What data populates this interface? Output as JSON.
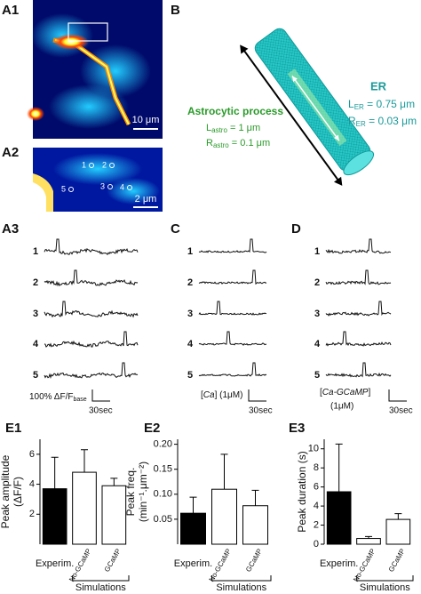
{
  "panels": {
    "a1": {
      "label": "A1",
      "scale": "10 μm"
    },
    "a2": {
      "label": "A2",
      "scale": "2 μm",
      "rois": [
        "1",
        "2",
        "3",
        "4",
        "5"
      ]
    },
    "b": {
      "label": "B",
      "er_title": "ER",
      "er_length": {
        "symbol": "L",
        "sub": "ER",
        "text": " = 0.75 μm"
      },
      "er_radius": {
        "symbol": "R",
        "sub": "ER",
        "text": " = 0.03 μm"
      },
      "process_title": "Astrocytic process",
      "process_length": {
        "symbol": "L",
        "sub": "astro",
        "text": " = 1 μm"
      },
      "process_radius": {
        "symbol": "R",
        "sub": "astro",
        "text": " = 0.1 μm"
      }
    },
    "a3": {
      "label": "A3",
      "traces": [
        "1",
        "2",
        "3",
        "4",
        "5"
      ],
      "scale_y": {
        "text": "100% ΔF/F",
        "sub": "base"
      },
      "scale_x": "30sec"
    },
    "c": {
      "label": "C",
      "traces": [
        "1",
        "2",
        "3",
        "4",
        "5"
      ],
      "scale_y": {
        "open": "[",
        "italic": "Ca",
        "close": "] (1μM)"
      },
      "scale_x": "30sec"
    },
    "d": {
      "label": "D",
      "traces": [
        "1",
        "2",
        "3",
        "4",
        "5"
      ],
      "scale_y": {
        "open": "[",
        "italic": "Ca-GCaMP",
        "close": "]"
      },
      "scale_y2": "(1μM)",
      "scale_x": "30sec"
    }
  },
  "chart_data": [
    {
      "type": "bar",
      "panel_label": "E1",
      "ylabel": [
        "Peak amplitude",
        "(ΔF/F)"
      ],
      "group_label": "Simulations",
      "categories": [
        "Experim.",
        "No-GCaMP",
        "GCaMP"
      ],
      "series": [
        {
          "values": [
            3.7,
            4.8,
            3.9
          ],
          "errors": [
            2.1,
            1.5,
            0.5
          ],
          "colors": [
            "#000000",
            "#ffffff",
            "#ffffff"
          ]
        }
      ],
      "ylim": [
        0,
        7
      ],
      "yticks": [
        2,
        4,
        6
      ]
    },
    {
      "type": "bar",
      "panel_label": "E2",
      "ylabel": [
        "Peak freq.",
        "(min⁻¹.μm⁻²)"
      ],
      "group_label": "Simulations",
      "categories": [
        "Experim.",
        "No-GCaMP",
        "GCaMP"
      ],
      "series": [
        {
          "values": [
            0.062,
            0.11,
            0.077
          ],
          "errors": [
            0.032,
            0.07,
            0.031
          ],
          "colors": [
            "#000000",
            "#ffffff",
            "#ffffff"
          ]
        }
      ],
      "ylim": [
        0,
        0.21
      ],
      "yticks": [
        {
          "value": 0.05,
          "label": "0.05"
        },
        {
          "value": 0.1,
          "label": "0.10"
        },
        {
          "value": 0.15,
          "label": "0.15"
        },
        {
          "value": 0.2,
          "label": "0.20"
        }
      ]
    },
    {
      "type": "bar",
      "panel_label": "E3",
      "ylabel": [
        "Peak duration (s)"
      ],
      "group_label": "Simulations",
      "categories": [
        "Experim.",
        "No-GCaMP",
        "GCaMP"
      ],
      "series": [
        {
          "values": [
            5.5,
            0.6,
            2.6
          ],
          "errors": [
            5,
            0.2,
            0.6
          ],
          "colors": [
            "#000000",
            "#ffffff",
            "#ffffff"
          ]
        }
      ],
      "ylim": [
        0,
        11
      ],
      "yticks": [
        0,
        2,
        4,
        6,
        8,
        10
      ]
    }
  ]
}
